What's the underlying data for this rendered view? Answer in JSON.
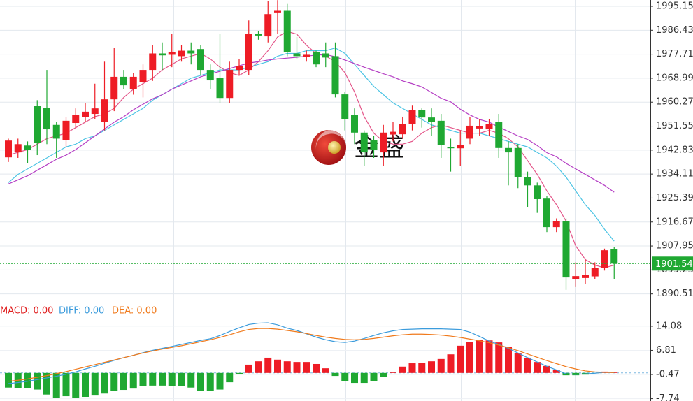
{
  "chart_data": [
    {
      "type": "candlestick",
      "ylim": [
        1887.63,
        1997.44
      ],
      "yticks": [
        1995.15,
        1986.43,
        1977.71,
        1968.99,
        1960.27,
        1951.55,
        1942.83,
        1934.11,
        1925.39,
        1916.67,
        1907.95,
        1899.23,
        1890.51
      ],
      "grid": true,
      "up_color": "#ee1c25",
      "down_color": "#1fa832",
      "open": [
        1940.2,
        1942,
        1944.5,
        1958.8,
        1958.1,
        1952,
        1946.6,
        1952.7,
        1954.8,
        1956,
        1953,
        1961.3,
        1969.5,
        1964.9,
        1967.5,
        1972,
        1978,
        1977.5,
        1977,
        1979,
        1979.6,
        1972,
        1969,
        1961.8,
        1972,
        1972,
        1985,
        1984.2,
        1992.9,
        1993.5,
        1978,
        1976.8,
        1978.4,
        1978,
        1977,
        1963.1,
        1955.5,
        1949.2,
        1946.6,
        1942,
        1948.5,
        1948.6,
        1952.2,
        1957.3,
        1954.7,
        1953.5,
        1944,
        1943.5,
        1947,
        1950.7,
        1950.4,
        1953,
        1943.6,
        1943.6,
        1933,
        1930,
        1925.2,
        1914.8,
        1916.9,
        1896,
        1896.3,
        1896.9,
        1900,
        1906.7
      ],
      "high": [
        1947,
        1947,
        1946,
        1961,
        1972,
        1953,
        1955,
        1958,
        1960,
        1967,
        1975,
        1980,
        1972,
        1971,
        1974,
        1981,
        1982,
        1985,
        1981,
        1982,
        1981,
        1974,
        1985,
        1975,
        1976,
        1990,
        1986,
        1997,
        1997.4,
        1996,
        1984,
        1979,
        1979,
        1982,
        1982,
        1964,
        1958,
        1950,
        1948,
        1952,
        1953,
        1955,
        1959,
        1958,
        1958,
        1956,
        1947,
        1950,
        1955,
        1954,
        1954,
        1956,
        1946,
        1945,
        1935,
        1931,
        1926,
        1918,
        1918,
        1902,
        1903,
        1902,
        1907,
        1907.5
      ],
      "low": [
        1938.5,
        1940,
        1938,
        1941,
        1945,
        1940,
        1944,
        1951,
        1953,
        1954,
        1950,
        1957,
        1965,
        1963,
        1962,
        1968,
        1972,
        1973,
        1975,
        1974,
        1970,
        1965,
        1960,
        1960,
        1970,
        1970,
        1983,
        1982,
        1985,
        1977,
        1976,
        1975,
        1973,
        1973,
        1962,
        1950,
        1945,
        1937,
        1940,
        1937,
        1946,
        1947,
        1950,
        1951,
        1948,
        1940,
        1935,
        1937,
        1945,
        1948,
        1948,
        1940,
        1930,
        1929,
        1922,
        1920,
        1913,
        1913,
        1892,
        1893,
        1894,
        1896,
        1899,
        1896
      ],
      "close": [
        1946.3,
        1945,
        1943,
        1945.4,
        1950.4,
        1947,
        1953.5,
        1955.5,
        1956.8,
        1958,
        1961.3,
        1969.5,
        1966.4,
        1969.5,
        1972,
        1978,
        1977.3,
        1978.5,
        1979,
        1978,
        1972,
        1968.2,
        1961.8,
        1972,
        1973.3,
        1985.2,
        1984.5,
        1992.3,
        1993.5,
        1978.4,
        1977,
        1977.5,
        1974,
        1976.5,
        1963.1,
        1954.2,
        1949.2,
        1942,
        1942.8,
        1949.2,
        1949.5,
        1952.2,
        1957.5,
        1954.7,
        1953,
        1944.6,
        1943.5,
        1944.6,
        1951.7,
        1951.5,
        1952.2,
        1943.6,
        1942,
        1933,
        1930,
        1925,
        1914.8,
        1916.9,
        1896.5,
        1897,
        1897.5,
        1900,
        1906.4,
        1901.54
      ],
      "lines": [
        {
          "color": "#e4578a",
          "values": [
            1941,
            1942,
            1943,
            1945,
            1947,
            1948,
            1949,
            1951,
            1953,
            1955,
            1956,
            1958,
            1962,
            1965,
            1967,
            1969,
            1972,
            1974,
            1976,
            1977,
            1978,
            1976,
            1973,
            1971,
            1970,
            1972,
            1975,
            1979,
            1984,
            1986,
            1985,
            1981,
            1978,
            1977,
            1975,
            1971,
            1964,
            1955,
            1949,
            1946,
            1945,
            1945,
            1946,
            1949,
            1951,
            1952,
            1951,
            1950,
            1949,
            1949,
            1950,
            1949,
            1947,
            1944,
            1939,
            1934,
            1928,
            1923,
            1917,
            1908,
            1903,
            1901,
            1900,
            1901
          ]
        },
        {
          "color": "#4cc4e4",
          "values": [
            1931,
            1934,
            1936,
            1938,
            1940,
            1942,
            1944,
            1945,
            1947,
            1948,
            1950,
            1952,
            1954,
            1956,
            1958,
            1961,
            1963,
            1965,
            1967,
            1969,
            1970,
            1971,
            1972,
            1972,
            1972,
            1973,
            1974,
            1975,
            1977,
            1978,
            1978,
            1979,
            1979,
            1979,
            1980,
            1978,
            1974,
            1970,
            1966,
            1963,
            1960,
            1958,
            1956,
            1954,
            1952,
            1951,
            1950,
            1949,
            1949,
            1949,
            1948,
            1947,
            1946,
            1945,
            1944,
            1942,
            1940,
            1937,
            1933,
            1928,
            1923,
            1919,
            1914,
            1909.7
          ]
        },
        {
          "color": "#b53fc4",
          "values": [
            1930.5,
            1932,
            1933.5,
            1935.5,
            1937.5,
            1939.5,
            1941,
            1943,
            1945.5,
            1948,
            1950.5,
            1953,
            1955,
            1957.5,
            1959.5,
            1961.5,
            1963,
            1965,
            1966.5,
            1968,
            1969.5,
            1970.5,
            1971.5,
            1972.5,
            1973.5,
            1974.5,
            1975,
            1975.6,
            1976,
            1976.3,
            1976.6,
            1977,
            1977.4,
            1977.6,
            1976.8,
            1975.6,
            1974.3,
            1973,
            1971.8,
            1970.6,
            1969.5,
            1968,
            1967,
            1965.8,
            1963.8,
            1961.7,
            1960.4,
            1957.7,
            1955.6,
            1954,
            1953,
            1951.2,
            1949.6,
            1948,
            1946.7,
            1944.5,
            1941.9,
            1940.4,
            1938,
            1936,
            1934,
            1932,
            1930,
            1927.5
          ]
        }
      ],
      "last_price": 1901.54,
      "last_price_color": "#1fa832",
      "watermark": "金盛"
    },
    {
      "type": "macd",
      "ylim": [
        -8.46,
        21.22
      ],
      "yticks": [
        14.08,
        6.81,
        -0.47,
        -7.74
      ],
      "series": [
        {
          "legend": "MACD: 0.00",
          "style": "histogram",
          "color": "#e02020",
          "up_color": "#ee1c25",
          "down_color": "#1fa832",
          "values": [
            -4.4,
            -4.5,
            -4.6,
            -5,
            -6.5,
            -7.6,
            -7,
            -7.6,
            -7.2,
            -6.8,
            -6.2,
            -5.5,
            -5.1,
            -4.7,
            -4,
            -3.8,
            -3.8,
            -4,
            -4,
            -4.4,
            -5.5,
            -5.5,
            -5,
            -2.8,
            -0.3,
            2.5,
            3.5,
            4.6,
            4,
            3.5,
            3.3,
            3.3,
            2.7,
            1.4,
            -0.9,
            -2.4,
            -3,
            -3,
            -2.4,
            -1.3,
            0.3,
            1.9,
            2.9,
            3.1,
            3.5,
            4.2,
            5.6,
            8.2,
            9.4,
            10,
            9.8,
            9.2,
            7.9,
            6,
            4.6,
            3.3,
            2.1,
            0.8,
            -0.7,
            -0.7,
            -0.5,
            -0.1,
            0.4,
            0.2
          ]
        },
        {
          "legend": "DIFF: 0.00",
          "style": "line",
          "color": "#3a9bdc",
          "values": [
            -3.2,
            -2.9,
            -2.5,
            -2,
            -1.5,
            -1,
            -0.4,
            0.3,
            1.2,
            2,
            2.9,
            3.8,
            4.6,
            5.3,
            6.1,
            6.8,
            7.4,
            8,
            8.6,
            9.2,
            9.8,
            10.3,
            11.3,
            12.5,
            13.6,
            14.6,
            15,
            15.1,
            14.5,
            13.5,
            12.8,
            11.8,
            10.8,
            10,
            9.4,
            9.2,
            9.6,
            10.4,
            11.3,
            12.1,
            12.7,
            13.1,
            13.2,
            13.3,
            13.3,
            13.3,
            13.2,
            13.1,
            12.3,
            11,
            9.6,
            8.6,
            7.4,
            6,
            4.6,
            3.3,
            2,
            0.9,
            -0.3,
            -0.4,
            -0.3,
            -0.1,
            0.2,
            0.1
          ]
        },
        {
          "legend": "DEA: 0.00",
          "style": "line",
          "color": "#f07a1c",
          "values": [
            -2.5,
            -2.2,
            -1.8,
            -1.3,
            -0.8,
            -0.2,
            0.4,
            1.1,
            1.8,
            2.5,
            3.2,
            3.9,
            4.6,
            5.3,
            6,
            6.6,
            7.2,
            7.7,
            8.2,
            8.8,
            9.4,
            10,
            10.7,
            11.5,
            12.4,
            13.1,
            13.4,
            13.4,
            13.2,
            12.8,
            12.4,
            11.9,
            11.3,
            10.8,
            10.4,
            10.1,
            10,
            10.1,
            10.4,
            10.8,
            11.2,
            11.5,
            11.7,
            11.7,
            11.6,
            11.4,
            11.1,
            10.7,
            10.2,
            9.7,
            9.1,
            8.4,
            7.6,
            6.7,
            5.7,
            4.7,
            3.7,
            2.8,
            1.9,
            1.2,
            0.6,
            0.3,
            0.2,
            0.1
          ]
        }
      ]
    }
  ]
}
